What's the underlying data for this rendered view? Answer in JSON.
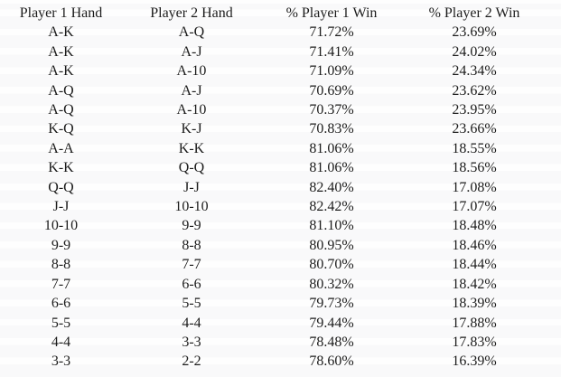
{
  "page": {
    "background_color": "#fefefe",
    "text_color": "#1c1c1c"
  },
  "table": {
    "name": "poker-heads-up-win-percentages",
    "columns": [
      "Player 1 Hand",
      "Player 2 Hand",
      "% Player 1 Win",
      "% Player 2 Win"
    ],
    "rows": [
      [
        "A-K",
        "A-Q",
        "71.72%",
        "23.69%"
      ],
      [
        "A-K",
        "A-J",
        "71.41%",
        "24.02%"
      ],
      [
        "A-K",
        "A-10",
        "71.09%",
        "24.34%"
      ],
      [
        "A-Q",
        "A-J",
        "70.69%",
        "23.62%"
      ],
      [
        "A-Q",
        "A-10",
        "70.37%",
        "23.95%"
      ],
      [
        "K-Q",
        "K-J",
        "70.83%",
        "23.66%"
      ],
      [
        "A-A",
        "K-K",
        "81.06%",
        "18.55%"
      ],
      [
        "K-K",
        "Q-Q",
        "81.06%",
        "18.56%"
      ],
      [
        "Q-Q",
        "J-J",
        "82.40%",
        "17.08%"
      ],
      [
        "J-J",
        "10-10",
        "82.42%",
        "17.07%"
      ],
      [
        "10-10",
        "9-9",
        "81.10%",
        "18.48%"
      ],
      [
        "9-9",
        "8-8",
        "80.95%",
        "18.46%"
      ],
      [
        "8-8",
        "7-7",
        "80.70%",
        "18.44%"
      ],
      [
        "7-7",
        "6-6",
        "80.32%",
        "18.42%"
      ],
      [
        "6-6",
        "5-5",
        "79.73%",
        "18.39%"
      ],
      [
        "5-5",
        "4-4",
        "79.44%",
        "17.88%"
      ],
      [
        "4-4",
        "3-3",
        "78.48%",
        "17.83%"
      ],
      [
        "3-3",
        "2-2",
        "78.60%",
        "16.39%"
      ]
    ]
  }
}
